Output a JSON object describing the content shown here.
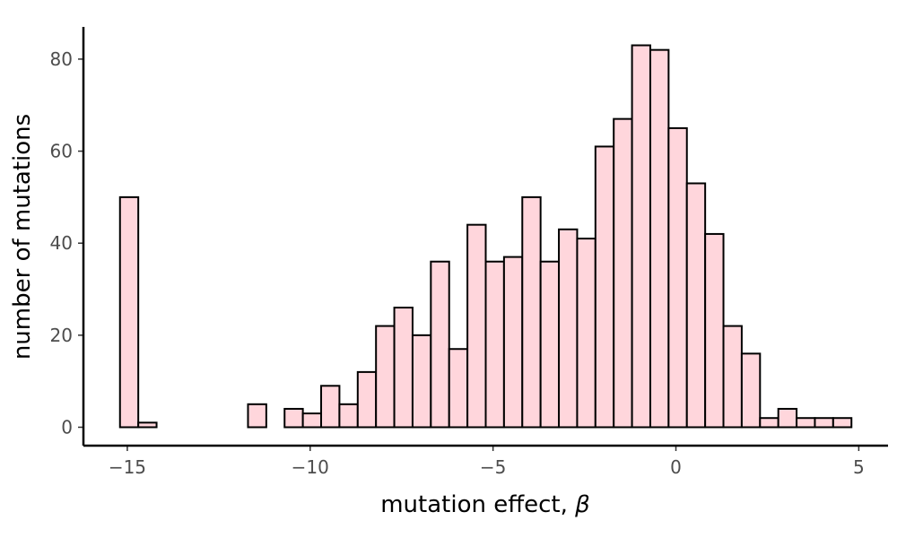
{
  "chart_data": {
    "type": "bar",
    "title": "",
    "xlabel": "mutation effect, ",
    "xlabel_symbol": "β",
    "ylabel": "number of mutations",
    "xlim": [
      -16.2,
      5.8
    ],
    "ylim": [
      -4,
      87
    ],
    "grid": false,
    "legend": "none",
    "bin_start": -15.2,
    "bin_width": 0.5,
    "values": [
      50,
      1,
      0,
      0,
      0,
      0,
      0,
      5,
      0,
      4,
      3,
      9,
      5,
      12,
      22,
      26,
      20,
      36,
      17,
      44,
      36,
      37,
      50,
      36,
      43,
      41,
      61,
      67,
      83,
      82,
      65,
      53,
      42,
      22,
      16,
      2,
      4,
      2,
      2,
      2
    ],
    "x_ticks": [
      {
        "value": -15,
        "label": "−15"
      },
      {
        "value": -10,
        "label": "−10"
      },
      {
        "value": -5,
        "label": "−5"
      },
      {
        "value": 0,
        "label": "0"
      },
      {
        "value": 5,
        "label": "5"
      }
    ],
    "y_ticks": [
      {
        "value": 0,
        "label": "0"
      },
      {
        "value": 20,
        "label": "20"
      },
      {
        "value": 40,
        "label": "40"
      },
      {
        "value": 60,
        "label": "60"
      },
      {
        "value": 80,
        "label": "80"
      }
    ],
    "bar_color": "#ffd6dc",
    "edge_color": "#000000"
  }
}
